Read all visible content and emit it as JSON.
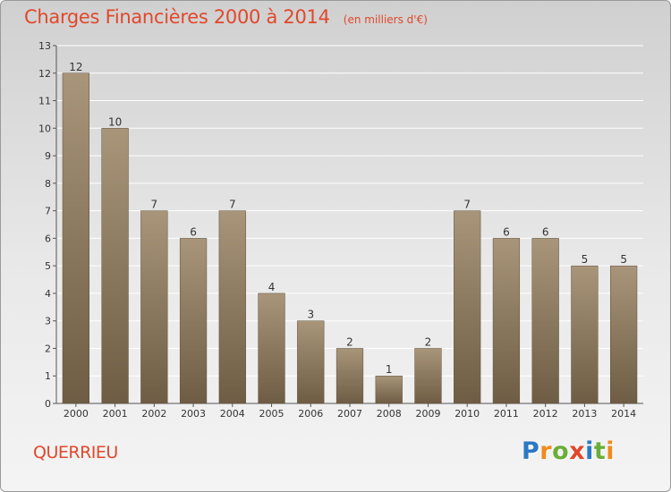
{
  "title": "Charges Financières 2000 à 2014",
  "subtitle": "(en milliers d'€)",
  "place": "QUERRIEU",
  "brand": {
    "letters": [
      "P",
      "r",
      "o",
      "x",
      "i",
      "t",
      "i"
    ],
    "colors": [
      "#2b79c2",
      "#f08a1c",
      "#6aae3a",
      "#e0482b",
      "#2b79c2",
      "#6aae3a",
      "#f08a1c"
    ]
  },
  "chart_data": {
    "type": "bar",
    "categories": [
      "2000",
      "2001",
      "2002",
      "2003",
      "2004",
      "2005",
      "2006",
      "2007",
      "2008",
      "2009",
      "2010",
      "2011",
      "2012",
      "2013",
      "2014"
    ],
    "values": [
      12,
      10,
      7,
      6,
      7,
      4,
      3,
      2,
      1,
      2,
      7,
      6,
      6,
      5,
      5
    ],
    "ylim": [
      0,
      13
    ],
    "yticks": [
      0,
      1,
      2,
      3,
      4,
      5,
      6,
      7,
      8,
      9,
      10,
      11,
      12,
      13
    ],
    "grid": true,
    "bar_color": "#8f7b5e"
  }
}
